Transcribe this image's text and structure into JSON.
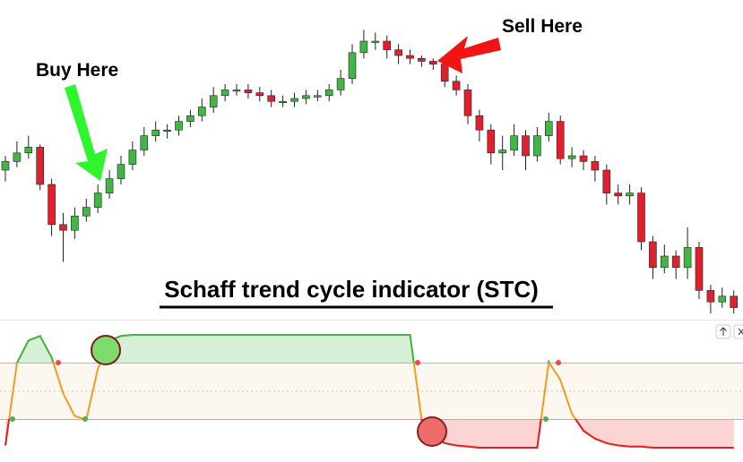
{
  "chart_data": {
    "type": "candlestick",
    "title": "Schaff trend cycle indicator (STC)",
    "annotations": [
      "Buy Here",
      "Sell Here"
    ],
    "up_color": "#43b547",
    "down_color": "#e0202e",
    "ylim": [
      0,
      100
    ],
    "open": [
      50,
      53,
      56,
      58,
      45,
      31,
      29,
      34,
      37,
      42,
      47,
      52,
      57,
      62,
      64,
      64,
      67,
      69,
      72,
      76,
      78,
      78,
      77,
      76,
      74,
      74,
      75,
      76,
      76,
      78,
      82,
      91,
      95,
      95,
      92,
      90,
      89,
      88,
      87,
      81,
      78,
      69,
      64,
      56,
      57,
      62,
      55,
      62,
      67,
      54,
      55,
      53,
      50,
      42,
      41,
      42,
      25,
      16,
      20,
      16,
      23,
      8,
      4,
      6
    ],
    "high": [
      55,
      60,
      62,
      59,
      47,
      35,
      37,
      40,
      45,
      50,
      55,
      60,
      65,
      67,
      66,
      69,
      71,
      75,
      79,
      80,
      80,
      80,
      79,
      78,
      76,
      77,
      78,
      78,
      80,
      85,
      94,
      99,
      98,
      97,
      94,
      92,
      90,
      89,
      88,
      83,
      80,
      71,
      66,
      62,
      66,
      64,
      65,
      70,
      69,
      58,
      57,
      55,
      52,
      45,
      45,
      44,
      27,
      24,
      22,
      30,
      25,
      10,
      9,
      8
    ],
    "low": [
      46,
      51,
      54,
      43,
      27,
      18,
      26,
      32,
      35,
      40,
      45,
      50,
      55,
      60,
      61,
      62,
      65,
      67,
      70,
      74,
      76,
      75,
      74,
      72,
      72,
      72,
      73,
      74,
      74,
      76,
      80,
      89,
      92,
      89,
      87,
      87,
      86,
      85,
      79,
      76,
      66,
      60,
      52,
      50,
      55,
      50,
      53,
      60,
      52,
      51,
      50,
      46,
      38,
      38,
      38,
      22,
      12,
      14,
      12,
      12,
      5,
      0,
      2,
      0
    ],
    "close": [
      53,
      56,
      58,
      45,
      31,
      29,
      34,
      37,
      42,
      47,
      52,
      57,
      62,
      64,
      64,
      67,
      69,
      72,
      76,
      78,
      78,
      77,
      76,
      74,
      74,
      75,
      76,
      76,
      78,
      82,
      91,
      95,
      95,
      92,
      90,
      89,
      88,
      87,
      81,
      78,
      69,
      64,
      56,
      57,
      62,
      55,
      62,
      67,
      54,
      55,
      53,
      50,
      42,
      41,
      42,
      25,
      16,
      20,
      16,
      23,
      8,
      4,
      6,
      2
    ],
    "indicator": {
      "color": "#f39c1f",
      "ylim": [
        0,
        100
      ],
      "levels": [
        25,
        50,
        75
      ],
      "values": [
        2,
        75,
        95,
        99,
        80,
        48,
        28,
        25,
        70,
        95,
        99,
        100,
        100,
        100,
        100,
        100,
        100,
        100,
        100,
        100,
        100,
        100,
        100,
        100,
        100,
        100,
        100,
        100,
        100,
        100,
        100,
        100,
        100,
        100,
        100,
        100,
        25,
        10,
        4,
        2,
        1,
        0,
        0,
        0,
        0,
        0,
        0,
        76,
        60,
        30,
        15,
        8,
        4,
        2,
        1,
        1,
        0,
        0,
        0,
        0,
        0,
        0,
        0,
        0
      ]
    }
  }
}
